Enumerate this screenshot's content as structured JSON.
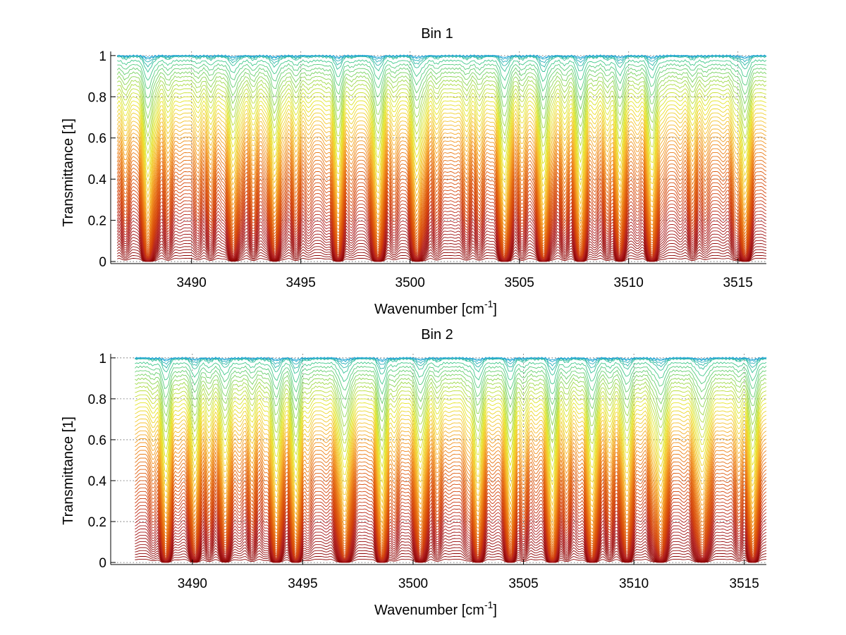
{
  "figure": {
    "background": "#ffffff",
    "colormap": [
      "#8b0000",
      "#b22222",
      "#d2400a",
      "#e06010",
      "#f08c1c",
      "#f6c030",
      "#e6e628",
      "#9ad84e",
      "#40c890",
      "#1aa0d8"
    ]
  },
  "chart_data": [
    {
      "type": "line",
      "title": "Bin 1",
      "xlabel": "Wavenumber [cm",
      "xlabel_sup": "-1",
      "xlabel_suffix": "]",
      "ylabel": "Transmittance [1]",
      "xlim": [
        3486.3,
        3516.3
      ],
      "ylim": [
        -0.01,
        1.02
      ],
      "xticks": [
        3490,
        3495,
        3500,
        3505,
        3510,
        3515
      ],
      "yticks": [
        0,
        0.2,
        0.4,
        0.6,
        0.8,
        1
      ],
      "ytick_labels": [
        "0",
        "0.2",
        "0.4",
        "0.6",
        "0.8",
        "1"
      ],
      "grid": true,
      "series_count": 60,
      "x_start": 3486.6,
      "x_end": 3516.3,
      "strong_lines": [
        {
          "x": 3488.0,
          "depth": 0.9
        },
        {
          "x": 3491.9,
          "depth": 0.55
        },
        {
          "x": 3493.8,
          "depth": 0.6
        },
        {
          "x": 3496.7,
          "depth": 0.55
        },
        {
          "x": 3498.5,
          "depth": 0.75
        },
        {
          "x": 3500.3,
          "depth": 0.7
        },
        {
          "x": 3504.3,
          "depth": 0.85
        },
        {
          "x": 3506.1,
          "depth": 0.95
        },
        {
          "x": 3507.8,
          "depth": 0.9
        },
        {
          "x": 3509.6,
          "depth": 0.6
        },
        {
          "x": 3511.1,
          "depth": 0.65
        },
        {
          "x": 3515.3,
          "depth": 0.7
        }
      ]
    },
    {
      "type": "line",
      "title": "Bin 2",
      "xlabel": "Wavenumber [cm",
      "xlabel_sup": "-1",
      "xlabel_suffix": "]",
      "ylabel": "Transmittance [1]",
      "xlim": [
        3486.3,
        3516.0
      ],
      "ylim": [
        -0.01,
        1.02
      ],
      "xticks": [
        3490,
        3495,
        3500,
        3505,
        3510,
        3515
      ],
      "yticks": [
        0,
        0.2,
        0.4,
        0.6,
        0.8,
        1
      ],
      "ytick_labels": [
        "0",
        "0.2",
        "0.4",
        "0.6",
        "0.8",
        "1"
      ],
      "grid": true,
      "series_count": 60,
      "x_start": 3487.4,
      "x_end": 3516.0,
      "strong_lines": [
        {
          "x": 3488.8,
          "depth": 0.6
        },
        {
          "x": 3490.1,
          "depth": 0.55
        },
        {
          "x": 3491.5,
          "depth": 0.5
        },
        {
          "x": 3493.8,
          "depth": 0.8
        },
        {
          "x": 3494.7,
          "depth": 0.7
        },
        {
          "x": 3496.9,
          "depth": 0.85
        },
        {
          "x": 3498.6,
          "depth": 0.8
        },
        {
          "x": 3500.3,
          "depth": 0.6
        },
        {
          "x": 3502.9,
          "depth": 0.65
        },
        {
          "x": 3504.4,
          "depth": 0.7
        },
        {
          "x": 3506.3,
          "depth": 0.95
        },
        {
          "x": 3508.1,
          "depth": 0.85
        },
        {
          "x": 3509.7,
          "depth": 0.6
        },
        {
          "x": 3511.2,
          "depth": 0.7
        },
        {
          "x": 3513.1,
          "depth": 0.6
        },
        {
          "x": 3515.4,
          "depth": 0.65
        }
      ]
    }
  ]
}
